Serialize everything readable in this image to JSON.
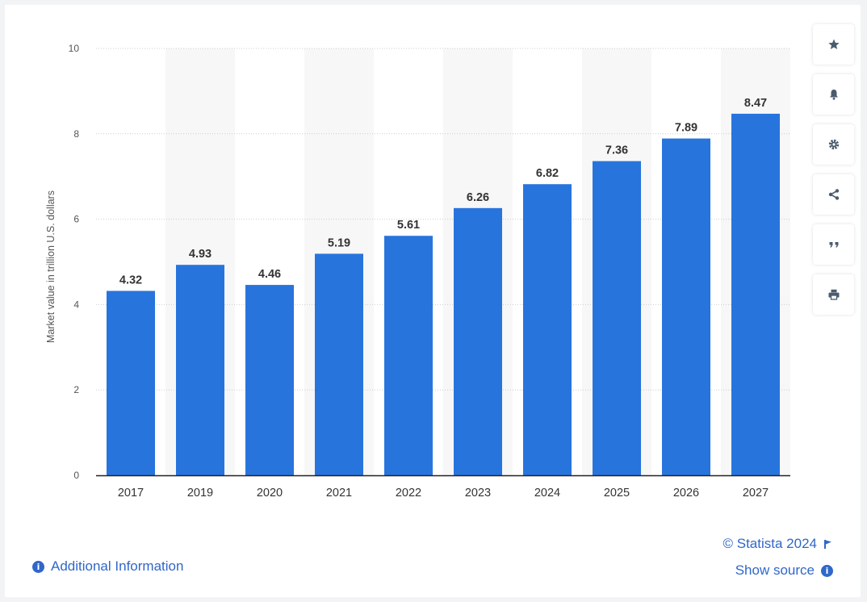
{
  "chart_data": {
    "type": "bar",
    "categories": [
      "2017",
      "2019",
      "2020",
      "2021",
      "2022",
      "2023",
      "2024",
      "2025",
      "2026",
      "2027"
    ],
    "values": [
      4.32,
      4.93,
      4.46,
      5.19,
      5.61,
      6.26,
      6.82,
      7.36,
      7.89,
      8.47
    ],
    "value_labels": [
      "4.32",
      "4.93",
      "4.46",
      "5.19",
      "5.61",
      "6.26",
      "6.82",
      "7.36",
      "7.89",
      "8.47"
    ],
    "title": "",
    "xlabel": "",
    "ylabel": "Market value in trillion U.S. dollars",
    "ylim": [
      0,
      10
    ],
    "yticks": [
      0,
      2,
      4,
      6,
      8,
      10
    ],
    "grid": true,
    "bar_color": "#2874dd"
  },
  "toolbar": [
    {
      "name": "favorite-button",
      "icon": "star-icon"
    },
    {
      "name": "notification-button",
      "icon": "bell-icon"
    },
    {
      "name": "settings-button",
      "icon": "gear-icon"
    },
    {
      "name": "share-button",
      "icon": "share-icon"
    },
    {
      "name": "cite-button",
      "icon": "quote-icon"
    },
    {
      "name": "print-button",
      "icon": "printer-icon"
    }
  ],
  "footer": {
    "additional_info": "Additional Information",
    "copyright": "© Statista 2024",
    "show_source": "Show source"
  },
  "colors": {
    "accent": "#3067c9",
    "bar": "#2874dd",
    "icon": "#4a5b6e"
  }
}
